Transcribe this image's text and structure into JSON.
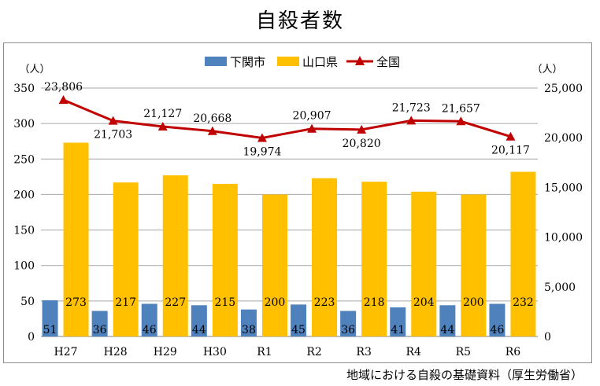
{
  "title": "自殺者数",
  "source": "地域における自殺の基礎資料（厚生労働省）",
  "chart_data": {
    "type": "bar",
    "categories": [
      "H27",
      "H28",
      "H29",
      "H30",
      "R1",
      "R2",
      "R3",
      "R4",
      "R5",
      "R6"
    ],
    "series": [
      {
        "name": "下関市",
        "kind": "bar",
        "axis": "left",
        "color": "#4f81bd",
        "values": [
          51,
          36,
          46,
          44,
          38,
          45,
          36,
          41,
          44,
          46
        ]
      },
      {
        "name": "山口県",
        "kind": "bar",
        "axis": "left",
        "color": "#ffc000",
        "values": [
          273,
          217,
          227,
          215,
          200,
          223,
          218,
          204,
          200,
          232
        ]
      },
      {
        "name": "全国",
        "kind": "line",
        "axis": "right",
        "color": "#c00000",
        "values": [
          23806,
          21703,
          21127,
          20668,
          19974,
          20907,
          20820,
          21723,
          21657,
          20117
        ]
      }
    ],
    "y_left": {
      "unit": "（人）",
      "ylim": [
        0,
        350
      ],
      "ticks": [
        0,
        50,
        100,
        150,
        200,
        250,
        300,
        350
      ]
    },
    "y_right": {
      "unit": "（人）",
      "ylim": [
        0,
        25000
      ],
      "ticks": [
        0,
        5000,
        10000,
        15000,
        20000,
        25000
      ],
      "tick_labels": [
        "0",
        "5,000",
        "10,000",
        "15,000",
        "20,000",
        "25,000"
      ]
    },
    "national_labels": [
      "23,806",
      "21,703",
      "21,127",
      "20,668",
      "19,974",
      "20,907",
      "20,820",
      "21,723",
      "21,657",
      "20,117"
    ],
    "legend_position": "top",
    "grid": true
  }
}
